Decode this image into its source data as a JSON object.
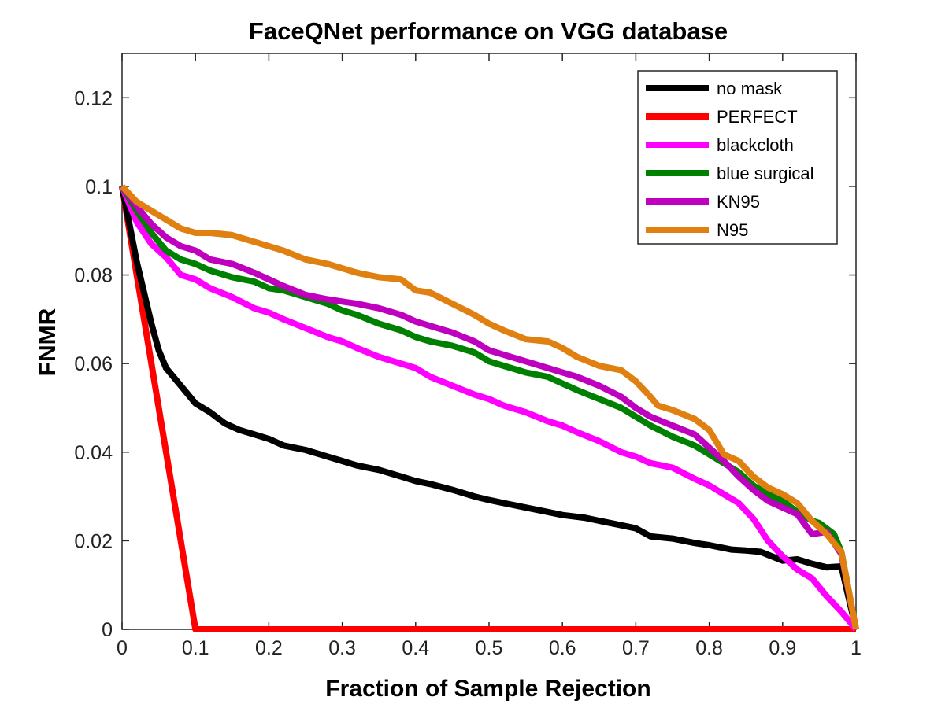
{
  "chart_data": {
    "type": "line",
    "title": "FaceQNet performance on VGG database",
    "xlabel": "Fraction of Sample Rejection",
    "ylabel": "FNMR",
    "xlim": [
      0,
      1
    ],
    "ylim": [
      0,
      0.13
    ],
    "xticks": [
      0,
      0.1,
      0.2,
      0.3,
      0.4,
      0.5,
      0.6,
      0.7,
      0.8,
      0.9,
      1
    ],
    "xtick_labels": [
      "0",
      "0.1",
      "0.2",
      "0.3",
      "0.4",
      "0.5",
      "0.6",
      "0.7",
      "0.8",
      "0.9",
      "1"
    ],
    "yticks": [
      0,
      0.02,
      0.04,
      0.06,
      0.08,
      0.1,
      0.12
    ],
    "ytick_labels": [
      "0",
      "0.02",
      "0.04",
      "0.06",
      "0.08",
      "0.1",
      "0.12"
    ],
    "grid": false,
    "legend_position": "top-right",
    "series": [
      {
        "name": "no mask",
        "color": "#000000",
        "x": [
          0,
          0.02,
          0.04,
          0.05,
          0.06,
          0.08,
          0.1,
          0.12,
          0.14,
          0.16,
          0.18,
          0.2,
          0.22,
          0.25,
          0.28,
          0.3,
          0.32,
          0.35,
          0.38,
          0.4,
          0.42,
          0.45,
          0.48,
          0.5,
          0.52,
          0.55,
          0.58,
          0.6,
          0.63,
          0.65,
          0.68,
          0.7,
          0.72,
          0.75,
          0.78,
          0.8,
          0.83,
          0.85,
          0.87,
          0.9,
          0.92,
          0.94,
          0.96,
          0.98,
          1.0
        ],
        "y": [
          0.1,
          0.083,
          0.069,
          0.063,
          0.059,
          0.055,
          0.051,
          0.049,
          0.0465,
          0.045,
          0.044,
          0.043,
          0.0415,
          0.0405,
          0.039,
          0.038,
          0.037,
          0.036,
          0.0345,
          0.0335,
          0.0328,
          0.0315,
          0.03,
          0.0292,
          0.0285,
          0.0275,
          0.0265,
          0.0258,
          0.0252,
          0.0245,
          0.0235,
          0.0228,
          0.021,
          0.0205,
          0.0195,
          0.019,
          0.018,
          0.0178,
          0.0175,
          0.0155,
          0.0158,
          0.0148,
          0.014,
          0.0142,
          0.0
        ]
      },
      {
        "name": "PERFECT",
        "color": "#ff0000",
        "x": [
          0,
          0.1,
          1.0
        ],
        "y": [
          0.1,
          0.0,
          0.0
        ]
      },
      {
        "name": "blackcloth",
        "color": "#ff00ff",
        "x": [
          0,
          0.02,
          0.04,
          0.06,
          0.08,
          0.1,
          0.12,
          0.15,
          0.18,
          0.2,
          0.22,
          0.25,
          0.28,
          0.3,
          0.32,
          0.35,
          0.38,
          0.4,
          0.42,
          0.45,
          0.48,
          0.5,
          0.52,
          0.55,
          0.58,
          0.6,
          0.62,
          0.65,
          0.68,
          0.7,
          0.72,
          0.75,
          0.78,
          0.8,
          0.82,
          0.84,
          0.86,
          0.88,
          0.9,
          0.92,
          0.94,
          0.96,
          0.98,
          1.0
        ],
        "y": [
          0.1,
          0.092,
          0.087,
          0.084,
          0.08,
          0.079,
          0.077,
          0.075,
          0.0725,
          0.0715,
          0.07,
          0.068,
          0.066,
          0.065,
          0.0635,
          0.0615,
          0.06,
          0.059,
          0.057,
          0.055,
          0.053,
          0.052,
          0.0505,
          0.049,
          0.047,
          0.046,
          0.0445,
          0.0425,
          0.04,
          0.039,
          0.0375,
          0.0365,
          0.034,
          0.0325,
          0.0305,
          0.0285,
          0.025,
          0.02,
          0.0165,
          0.0135,
          0.0115,
          0.0075,
          0.004,
          0.0
        ]
      },
      {
        "name": "blue surgical",
        "color": "#008000",
        "x": [
          0,
          0.02,
          0.04,
          0.06,
          0.08,
          0.1,
          0.12,
          0.15,
          0.18,
          0.2,
          0.22,
          0.25,
          0.28,
          0.3,
          0.32,
          0.35,
          0.38,
          0.4,
          0.42,
          0.45,
          0.48,
          0.5,
          0.52,
          0.55,
          0.58,
          0.6,
          0.62,
          0.65,
          0.68,
          0.7,
          0.72,
          0.75,
          0.78,
          0.8,
          0.82,
          0.84,
          0.86,
          0.88,
          0.9,
          0.92,
          0.94,
          0.95,
          0.97,
          0.98,
          1.0
        ],
        "y": [
          0.1,
          0.0945,
          0.0895,
          0.0855,
          0.0835,
          0.0825,
          0.081,
          0.0795,
          0.0785,
          0.077,
          0.0765,
          0.075,
          0.0735,
          0.072,
          0.071,
          0.069,
          0.0675,
          0.066,
          0.065,
          0.064,
          0.0625,
          0.0605,
          0.0595,
          0.058,
          0.057,
          0.0555,
          0.054,
          0.052,
          0.05,
          0.048,
          0.046,
          0.0435,
          0.0415,
          0.0395,
          0.0375,
          0.0355,
          0.0325,
          0.0305,
          0.029,
          0.0265,
          0.0245,
          0.024,
          0.0215,
          0.0175,
          0.0
        ]
      },
      {
        "name": "KN95",
        "color": "#bf00bf",
        "x": [
          0,
          0.02,
          0.04,
          0.06,
          0.08,
          0.1,
          0.12,
          0.15,
          0.18,
          0.2,
          0.22,
          0.25,
          0.28,
          0.3,
          0.32,
          0.35,
          0.38,
          0.4,
          0.42,
          0.45,
          0.48,
          0.5,
          0.52,
          0.55,
          0.58,
          0.6,
          0.62,
          0.65,
          0.68,
          0.7,
          0.72,
          0.75,
          0.78,
          0.8,
          0.82,
          0.84,
          0.86,
          0.88,
          0.9,
          0.92,
          0.94,
          0.96,
          0.98,
          1.0
        ],
        "y": [
          0.1,
          0.0955,
          0.0915,
          0.0885,
          0.0865,
          0.0855,
          0.0835,
          0.0825,
          0.0805,
          0.079,
          0.0775,
          0.0755,
          0.0745,
          0.074,
          0.0735,
          0.0725,
          0.071,
          0.0695,
          0.0685,
          0.067,
          0.065,
          0.063,
          0.062,
          0.0605,
          0.059,
          0.058,
          0.057,
          0.055,
          0.0525,
          0.05,
          0.048,
          0.046,
          0.044,
          0.041,
          0.038,
          0.0345,
          0.0315,
          0.029,
          0.0275,
          0.026,
          0.0215,
          0.022,
          0.017,
          0.0
        ]
      },
      {
        "name": "N95",
        "color": "#e08010",
        "x": [
          0,
          0.02,
          0.04,
          0.06,
          0.08,
          0.1,
          0.12,
          0.15,
          0.18,
          0.2,
          0.22,
          0.25,
          0.28,
          0.3,
          0.32,
          0.35,
          0.38,
          0.4,
          0.42,
          0.45,
          0.48,
          0.5,
          0.52,
          0.55,
          0.58,
          0.6,
          0.62,
          0.65,
          0.68,
          0.7,
          0.72,
          0.73,
          0.75,
          0.78,
          0.8,
          0.82,
          0.84,
          0.86,
          0.88,
          0.9,
          0.92,
          0.94,
          0.96,
          0.98,
          1.0
        ],
        "y": [
          0.1,
          0.0965,
          0.0945,
          0.0925,
          0.0905,
          0.0895,
          0.0895,
          0.089,
          0.0875,
          0.0865,
          0.0855,
          0.0835,
          0.0825,
          0.0815,
          0.0805,
          0.0795,
          0.079,
          0.0765,
          0.076,
          0.0735,
          0.071,
          0.069,
          0.0675,
          0.0655,
          0.065,
          0.0635,
          0.0615,
          0.0595,
          0.0585,
          0.056,
          0.0525,
          0.0505,
          0.0495,
          0.0475,
          0.045,
          0.0395,
          0.038,
          0.0345,
          0.032,
          0.0305,
          0.0285,
          0.0245,
          0.0215,
          0.0175,
          0.0
        ]
      }
    ]
  }
}
